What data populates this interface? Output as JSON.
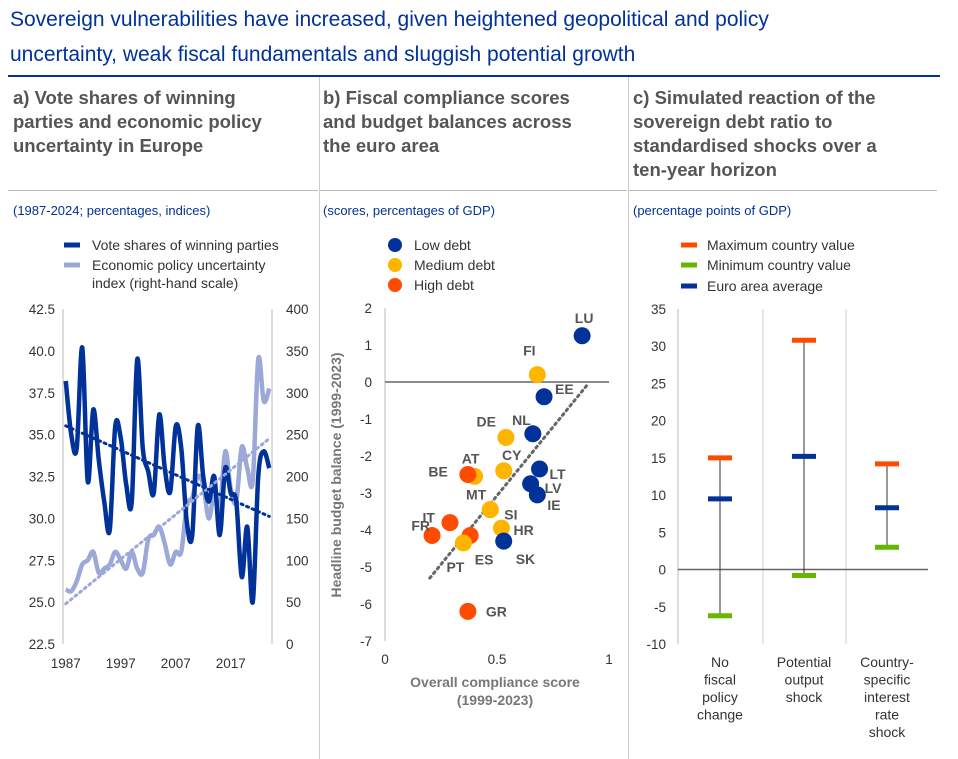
{
  "header": {
    "title_line1": "Sovereign vulnerabilities have increased, given heightened geopolitical and policy",
    "title_line2": "uncertainty, weak fiscal fundamentals and sluggish potential growth"
  },
  "colors": {
    "dark_blue": "#003299",
    "light_blue": "#9CA8D8",
    "orange": "#FF4B00",
    "yellow": "#FFB400",
    "green": "#65B800",
    "title_blue": "#003299"
  },
  "chart_data": [
    {
      "type": "line",
      "panel_title": [
        "a) Vote shares of winning",
        "parties and economic policy",
        "uncertainty in Europe"
      ],
      "units": "(1987-2024; percentages, indices)",
      "legend": [
        "Vote shares of winning parties",
        "Economic policy uncertainty",
        "index (right-hand scale)"
      ],
      "x_ticks": [
        "1987",
        "1997",
        "2007",
        "2017"
      ],
      "y_left_ticks": [
        "42.5",
        "40.0",
        "37.5",
        "35.0",
        "32.5",
        "30.0",
        "27.5",
        "25.0",
        "22.5"
      ],
      "y_right_ticks": [
        "400",
        "350",
        "300",
        "250",
        "200",
        "150",
        "100",
        "50",
        "0"
      ],
      "ylim_left": [
        22.5,
        42.5
      ],
      "ylim_right": [
        0,
        400
      ],
      "xlim": [
        1987,
        2024
      ],
      "series": [
        {
          "name": "Vote shares of winning parties",
          "axis": "left",
          "x": [
            1987,
            1988,
            1989,
            1990,
            1991,
            1992,
            1993,
            1994,
            1995,
            1996,
            1997,
            1998,
            1999,
            2000,
            2001,
            2002,
            2003,
            2004,
            2005,
            2006,
            2007,
            2008,
            2009,
            2010,
            2011,
            2012,
            2013,
            2014,
            2015,
            2016,
            2017,
            2018,
            2019,
            2020,
            2021,
            2022,
            2023,
            2024
          ],
          "values": [
            38.2,
            35.0,
            34.2,
            40.2,
            32.2,
            36.5,
            33.5,
            31.0,
            29.3,
            35.5,
            34.8,
            32.0,
            31.0,
            39.5,
            34.2,
            32.8,
            31.5,
            36.2,
            33.0,
            31.6,
            35.5,
            34.2,
            29.8,
            29.0,
            35.5,
            32.5,
            31.0,
            32.5,
            29.0,
            33.0,
            31.5,
            31.0,
            26.5,
            29.5,
            25.0,
            32.5,
            34.0,
            33.0
          ]
        },
        {
          "name": "Economic policy uncertainty index (right-hand scale)",
          "axis": "right",
          "x": [
            1987,
            1988,
            1989,
            1990,
            1991,
            1992,
            1993,
            1994,
            1995,
            1996,
            1997,
            1998,
            1999,
            2000,
            2001,
            2002,
            2003,
            2004,
            2005,
            2006,
            2007,
            2008,
            2009,
            2010,
            2011,
            2012,
            2013,
            2014,
            2015,
            2016,
            2017,
            2018,
            2019,
            2020,
            2021,
            2022,
            2023,
            2024
          ],
          "values": [
            65,
            63,
            75,
            95,
            100,
            110,
            85,
            90,
            95,
            110,
            100,
            90,
            110,
            90,
            85,
            125,
            130,
            140,
            120,
            95,
            110,
            110,
            165,
            175,
            200,
            190,
            150,
            180,
            160,
            230,
            185,
            170,
            235,
            210,
            195,
            340,
            290,
            305
          ]
        }
      ]
    },
    {
      "type": "scatter",
      "panel_title": [
        "b) Fiscal compliance scores",
        "and budget balances across",
        "the euro area"
      ],
      "units": "(scores, percentages of GDP)",
      "legend": [
        "Low debt",
        "Medium debt",
        "High debt"
      ],
      "xlabel": [
        "Overall compliance score",
        "(1999-2023)"
      ],
      "ylabel": "Headline budget balance (1999-2023)",
      "x_ticks": [
        "0",
        "0.5",
        "1"
      ],
      "y_ticks": [
        "2",
        "1",
        "0",
        "-1",
        "-2",
        "-3",
        "-4",
        "-5",
        "-6",
        "-7"
      ],
      "xlim": [
        0,
        1
      ],
      "ylim": [
        -7,
        2
      ],
      "points": [
        {
          "label": "LU",
          "x": 0.88,
          "y": 1.25,
          "group": "Low debt"
        },
        {
          "label": "FI",
          "x": 0.68,
          "y": 0.2,
          "group": "Medium debt"
        },
        {
          "label": "EE",
          "x": 0.71,
          "y": -0.4,
          "group": "Low debt"
        },
        {
          "label": "NL",
          "x": 0.66,
          "y": -1.4,
          "group": "Low debt"
        },
        {
          "label": "DE",
          "x": 0.54,
          "y": -1.5,
          "group": "Medium debt"
        },
        {
          "label": "CY",
          "x": 0.53,
          "y": -2.4,
          "group": "Medium debt"
        },
        {
          "label": "LT",
          "x": 0.69,
          "y": -2.35,
          "group": "Low debt"
        },
        {
          "label": "LV",
          "x": 0.65,
          "y": -2.75,
          "group": "Low debt"
        },
        {
          "label": "IE",
          "x": 0.68,
          "y": -3.05,
          "group": "Low debt"
        },
        {
          "label": "AT",
          "x": 0.4,
          "y": -2.55,
          "group": "Medium debt"
        },
        {
          "label": "BE",
          "x": 0.37,
          "y": -2.5,
          "group": "High debt"
        },
        {
          "label": "MT",
          "x": 0.47,
          "y": -3.45,
          "group": "Medium debt"
        },
        {
          "label": "SI",
          "x": 0.47,
          "y": -3.45,
          "group": "Medium debt"
        },
        {
          "label": "HR",
          "x": 0.52,
          "y": -3.95,
          "group": "Medium debt"
        },
        {
          "label": "IT",
          "x": 0.29,
          "y": -3.8,
          "group": "High debt"
        },
        {
          "label": "FR",
          "x": 0.21,
          "y": -4.15,
          "group": "High debt"
        },
        {
          "label": "ES",
          "x": 0.38,
          "y": -4.15,
          "group": "High debt"
        },
        {
          "label": "PT",
          "x": 0.35,
          "y": -4.35,
          "group": "Medium debt"
        },
        {
          "label": "SK",
          "x": 0.53,
          "y": -4.3,
          "group": "Low debt"
        },
        {
          "label": "GR",
          "x": 0.37,
          "y": -6.2,
          "group": "High debt"
        }
      ],
      "trend_line": {
        "x": [
          0.2,
          0.9
        ],
        "y": [
          -5.3,
          -0.1
        ]
      }
    },
    {
      "type": "range",
      "panel_title": [
        "c) Simulated reaction of the",
        "sovereign debt ratio to",
        "standardised shocks over a",
        "ten-year horizon"
      ],
      "units": "(percentage points of GDP)",
      "legend": [
        "Maximum country value",
        "Minimum country value",
        "Euro area average"
      ],
      "y_ticks": [
        "35",
        "30",
        "25",
        "20",
        "15",
        "10",
        "5",
        "0",
        "-5",
        "-10"
      ],
      "ylim": [
        -10,
        35
      ],
      "categories": [
        [
          "No",
          "fiscal",
          "policy",
          "change"
        ],
        [
          "Potential",
          "output",
          "shock"
        ],
        [
          "Country-",
          "specific",
          "interest",
          "rate",
          "shock"
        ]
      ],
      "max": [
        15.0,
        30.8,
        14.2
      ],
      "min": [
        -6.2,
        -0.8,
        3.0
      ],
      "average": [
        9.5,
        15.2,
        8.3
      ]
    }
  ]
}
